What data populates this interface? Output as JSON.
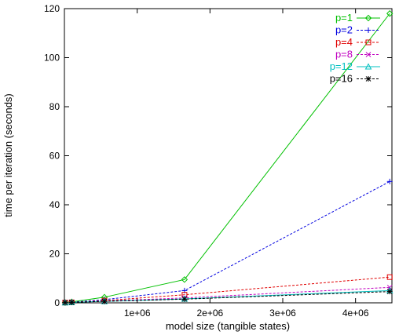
{
  "chart_data": {
    "type": "line",
    "title": "",
    "xlabel": "model size (tangible states)",
    "ylabel": "time per iteration (seconds)",
    "xlim": [
      0,
      4500000
    ],
    "ylim": [
      0,
      120
    ],
    "x_ticks": [
      {
        "value": 1000000,
        "label": "1e+06"
      },
      {
        "value": 2000000,
        "label": "2e+06"
      },
      {
        "value": 3000000,
        "label": "3e+06"
      },
      {
        "value": 4000000,
        "label": "4e+06"
      }
    ],
    "y_ticks": [
      {
        "value": 0,
        "label": "0"
      },
      {
        "value": 20,
        "label": "20"
      },
      {
        "value": 40,
        "label": "40"
      },
      {
        "value": 60,
        "label": "60"
      },
      {
        "value": 80,
        "label": "80"
      },
      {
        "value": 100,
        "label": "100"
      },
      {
        "value": 120,
        "label": "120"
      }
    ],
    "grid": false,
    "legend_position": "top-right",
    "x": [
      10000,
      100000,
      550000,
      1650000,
      4470000
    ],
    "series": [
      {
        "name": "p=1",
        "color": "#00c000",
        "marker": "diamond",
        "dash": "solid",
        "values": [
          0.1,
          0.4,
          2.3,
          9.5,
          118
        ]
      },
      {
        "name": "p=2",
        "color": "#0000e0",
        "marker": "plus",
        "dash": "dashed",
        "values": [
          0.1,
          0.3,
          1.3,
          5.0,
          49.5
        ]
      },
      {
        "name": "p=4",
        "color": "#e00000",
        "marker": "square",
        "dash": "dashed",
        "values": [
          0.1,
          0.2,
          0.9,
          3.3,
          10.5
        ]
      },
      {
        "name": "p=8",
        "color": "#c000c0",
        "marker": "cross",
        "dash": "dashed",
        "values": [
          0.1,
          0.2,
          0.7,
          2.0,
          6.3
        ]
      },
      {
        "name": "p=12",
        "color": "#00c0c0",
        "marker": "triangle",
        "dash": "solid",
        "values": [
          0.1,
          0.2,
          0.6,
          1.6,
          5.0
        ]
      },
      {
        "name": "p=16",
        "color": "#000000",
        "marker": "star",
        "dash": "dashed",
        "values": [
          0.1,
          0.2,
          0.6,
          1.5,
          4.6
        ]
      }
    ]
  }
}
